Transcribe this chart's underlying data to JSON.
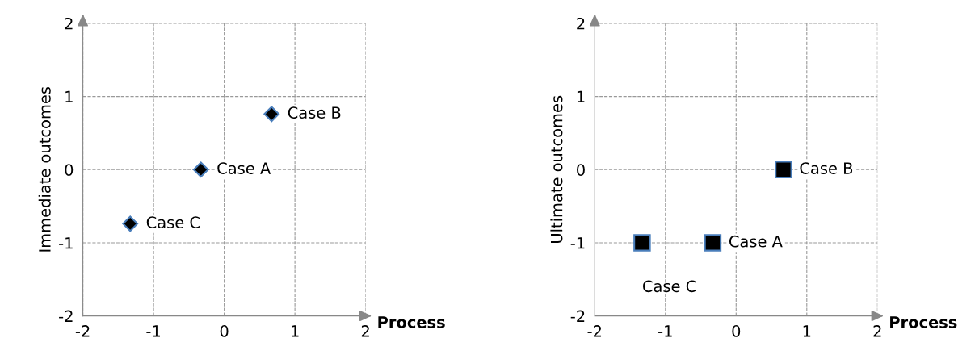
{
  "chart_data": [
    {
      "type": "scatter",
      "ylabel": "Immediate outcomes",
      "xlabel": "Process",
      "x": [
        0.67,
        -0.33,
        -1.33
      ],
      "series": [
        {
          "color": "#000000",
          "values": [
            0.76,
            0,
            -0.74
          ]
        }
      ],
      "marker": "diamond",
      "xlim": [
        -2,
        2
      ],
      "ylim": [
        -2,
        2
      ],
      "xticks": [
        -2,
        -1,
        0,
        1,
        2
      ],
      "yticks": [
        -2,
        -1,
        0,
        1,
        2
      ],
      "grid": true,
      "annotations": [
        {
          "text": "Case B",
          "x": 0.67,
          "y": 0.76
        },
        {
          "text": "Case A",
          "x": -0.33,
          "y": 0
        },
        {
          "text": "Case C",
          "x": -1.33,
          "y": -0.74
        }
      ]
    },
    {
      "type": "scatter",
      "ylabel": "Ultimate outcomes",
      "xlabel": "Process",
      "x": [
        0.67,
        -0.33,
        -1.33
      ],
      "series": [
        {
          "color": "#000000",
          "values": [
            0,
            -1,
            -1
          ]
        }
      ],
      "marker": "square",
      "xlim": [
        -2,
        2
      ],
      "ylim": [
        -2,
        2
      ],
      "xticks": [
        -2,
        -1,
        0,
        1,
        2
      ],
      "yticks": [
        -2,
        -1,
        0,
        1,
        2
      ],
      "grid": true,
      "annotations": [
        {
          "text": "Case B",
          "x": 0.67,
          "y": 0
        },
        {
          "text": "Case A",
          "x": -0.33,
          "y": -1
        },
        {
          "text": "Case C",
          "x": -1.33,
          "y": -1
        }
      ]
    }
  ]
}
